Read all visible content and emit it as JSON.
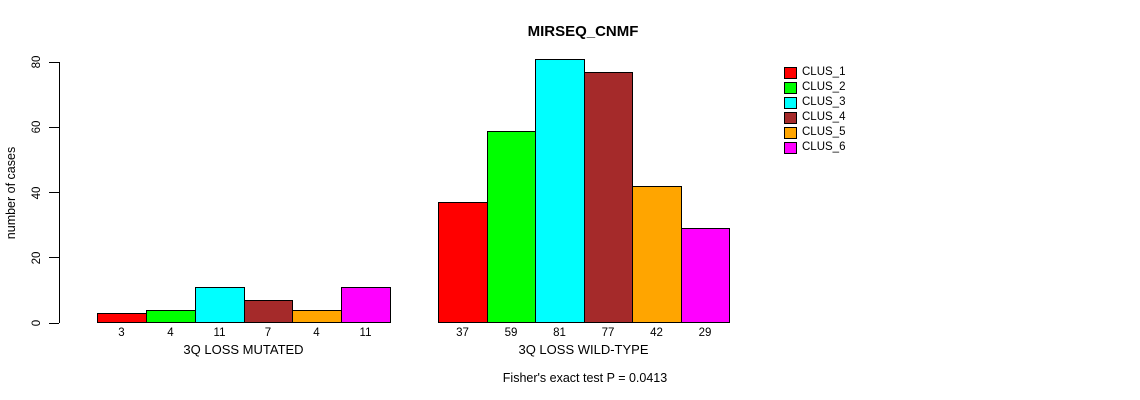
{
  "chart_data": {
    "type": "bar",
    "title": "MIRSEQ_CNMF",
    "ylabel": "number of cases",
    "ylim": [
      0,
      80
    ],
    "yticks": [
      0,
      20,
      40,
      60,
      80
    ],
    "grid": false,
    "legend_position": "right",
    "footnote": "Fisher's exact test P = 0.0413",
    "series_colors": [
      "#FF0000",
      "#00FF00",
      "#00FFFF",
      "#A52A2A",
      "#FFA500",
      "#FF00FF"
    ],
    "legend_entries": [
      {
        "label": "CLUS_1",
        "color": "#FF0000"
      },
      {
        "label": "CLUS_2",
        "color": "#00FF00"
      },
      {
        "label": "CLUS_3",
        "color": "#00FFFF"
      },
      {
        "label": "CLUS_4",
        "color": "#A52A2A"
      },
      {
        "label": "CLUS_5",
        "color": "#FFA500"
      },
      {
        "label": "CLUS_6",
        "color": "#FF00FF"
      }
    ],
    "groups": [
      {
        "label": "3Q LOSS MUTATED",
        "values": [
          3,
          4,
          11,
          7,
          4,
          11
        ]
      },
      {
        "label": "3Q LOSS WILD-TYPE",
        "values": [
          37,
          59,
          81,
          77,
          42,
          29
        ]
      }
    ]
  }
}
